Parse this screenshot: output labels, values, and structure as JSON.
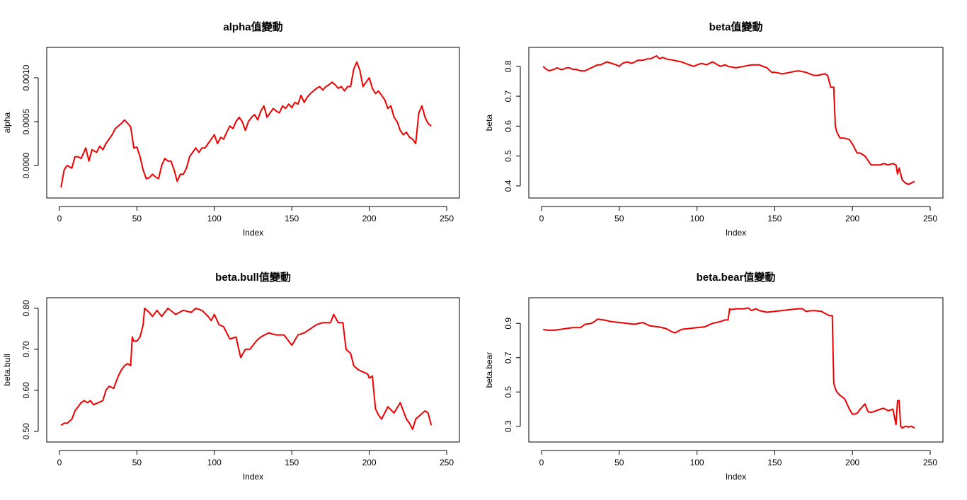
{
  "colors": {
    "line": "#ee0000",
    "axis": "#000000",
    "background": "#ffffff"
  },
  "chart_data": [
    {
      "type": "line",
      "title": "alpha值變動",
      "xlabel": "Index",
      "ylabel": "alpha",
      "xlim": [
        0,
        250
      ],
      "ylim": [
        -0.00025,
        0.00125
      ],
      "xticks": [
        0,
        50,
        100,
        150,
        200,
        250
      ],
      "xtick_labels": [
        "0",
        "50",
        "100",
        "150",
        "200",
        "250"
      ],
      "yticks": [
        0.0,
        0.0005,
        0.001
      ],
      "ytick_labels": [
        "0.0000",
        "0.0005",
        "0.0010"
      ],
      "series": [
        {
          "x": [
            1,
            3,
            5,
            8,
            10,
            12,
            14,
            17,
            19,
            21,
            24,
            26,
            28,
            30,
            32,
            34,
            36,
            38,
            40,
            42,
            44,
            46,
            48,
            50,
            52,
            54,
            56,
            58,
            60,
            62,
            64,
            66,
            68,
            70,
            72,
            74,
            76,
            78,
            80,
            82,
            84,
            86,
            88,
            90,
            92,
            94,
            96,
            98,
            100,
            102,
            104,
            106,
            108,
            110,
            112,
            114,
            116,
            118,
            120,
            122,
            124,
            126,
            128,
            130,
            132,
            134,
            136,
            138,
            140,
            142,
            144,
            146,
            148,
            150,
            152,
            154,
            156,
            158,
            160,
            162,
            164,
            166,
            168,
            170,
            172,
            174,
            176,
            178,
            180,
            182,
            184,
            186,
            188,
            190,
            192,
            194,
            196,
            198,
            200,
            202,
            204,
            206,
            208,
            210,
            212,
            214,
            216,
            218,
            220,
            222,
            224,
            226,
            228,
            230,
            232,
            234,
            236,
            238,
            240
          ],
          "values": [
            -0.00025,
            -5e-05,
            0.0,
            -3e-05,
            0.0001,
            0.0001,
            8e-05,
            0.0002,
            5e-05,
            0.00018,
            0.00015,
            0.00022,
            0.00018,
            0.00025,
            0.0003,
            0.00035,
            0.00042,
            0.00045,
            0.00048,
            0.00052,
            0.00048,
            0.00044,
            0.0002,
            0.00021,
            0.0001,
            -5e-05,
            -0.00015,
            -0.00014,
            -0.0001,
            -0.00013,
            -0.00015,
            0.0,
            8e-05,
            5e-05,
            5e-05,
            -5e-05,
            -0.00018,
            -0.0001,
            -0.0001,
            -3e-05,
            0.0001,
            0.00015,
            0.0002,
            0.00015,
            0.0002,
            0.0002,
            0.00025,
            0.0003,
            0.00035,
            0.00025,
            0.00032,
            0.0003,
            0.00038,
            0.00045,
            0.00042,
            0.0005,
            0.00055,
            0.0005,
            0.0004,
            0.0005,
            0.00055,
            0.00058,
            0.00052,
            0.00062,
            0.00068,
            0.00055,
            0.0006,
            0.00065,
            0.00062,
            0.0006,
            0.00068,
            0.00065,
            0.0007,
            0.00066,
            0.00072,
            0.0007,
            0.0008,
            0.00072,
            0.00078,
            0.00082,
            0.00085,
            0.00088,
            0.0009,
            0.00086,
            0.0009,
            0.00092,
            0.00095,
            0.00092,
            0.00088,
            0.0009,
            0.00085,
            0.0009,
            0.0009,
            0.0011,
            0.00118,
            0.00108,
            0.0009,
            0.00095,
            0.001,
            0.00088,
            0.00082,
            0.00085,
            0.0008,
            0.00075,
            0.00065,
            0.00068,
            0.00055,
            0.0005,
            0.0004,
            0.00035,
            0.00038,
            0.00032,
            0.0003,
            0.00025,
            0.0006,
            0.00068,
            0.00055,
            0.00048,
            0.00045
          ]
        }
      ]
    },
    {
      "type": "line",
      "title": "beta值變動",
      "xlabel": "Index",
      "ylabel": "beta",
      "xlim": [
        0,
        250
      ],
      "ylim": [
        0.395,
        0.835
      ],
      "xticks": [
        0,
        50,
        100,
        150,
        200,
        250
      ],
      "xtick_labels": [
        "0",
        "50",
        "100",
        "150",
        "200",
        "250"
      ],
      "yticks": [
        0.4,
        0.5,
        0.6,
        0.7,
        0.8
      ],
      "ytick_labels": [
        "0.4",
        "0.5",
        "0.6",
        "0.7",
        "0.8"
      ],
      "series": [
        {
          "x": [
            1,
            3,
            5,
            8,
            10,
            12,
            14,
            16,
            18,
            20,
            22,
            25,
            28,
            30,
            32,
            34,
            36,
            38,
            40,
            42,
            45,
            48,
            50,
            52,
            55,
            58,
            60,
            62,
            65,
            68,
            70,
            72,
            74,
            76,
            78,
            80,
            85,
            90,
            95,
            98,
            100,
            103,
            106,
            110,
            115,
            118,
            120,
            125,
            130,
            135,
            140,
            145,
            148,
            150,
            155,
            160,
            165,
            170,
            175,
            178,
            182,
            184,
            186,
            188,
            189,
            190,
            192,
            195,
            198,
            200,
            203,
            205,
            208,
            212,
            215,
            218,
            220,
            223,
            226,
            228,
            229,
            230,
            232,
            234,
            236,
            238,
            240
          ],
          "values": [
            0.8,
            0.79,
            0.785,
            0.79,
            0.795,
            0.79,
            0.79,
            0.795,
            0.795,
            0.79,
            0.79,
            0.785,
            0.785,
            0.79,
            0.795,
            0.8,
            0.805,
            0.805,
            0.81,
            0.815,
            0.81,
            0.805,
            0.8,
            0.81,
            0.815,
            0.81,
            0.815,
            0.82,
            0.82,
            0.825,
            0.825,
            0.83,
            0.835,
            0.825,
            0.83,
            0.825,
            0.82,
            0.815,
            0.805,
            0.8,
            0.805,
            0.81,
            0.805,
            0.815,
            0.8,
            0.805,
            0.8,
            0.795,
            0.8,
            0.805,
            0.805,
            0.795,
            0.78,
            0.78,
            0.775,
            0.78,
            0.785,
            0.78,
            0.77,
            0.77,
            0.775,
            0.77,
            0.73,
            0.73,
            0.6,
            0.58,
            0.56,
            0.56,
            0.555,
            0.54,
            0.51,
            0.51,
            0.5,
            0.47,
            0.47,
            0.47,
            0.475,
            0.47,
            0.475,
            0.47,
            0.44,
            0.46,
            0.42,
            0.41,
            0.405,
            0.41,
            0.415
          ]
        }
      ]
    },
    {
      "type": "line",
      "title": "beta.bull值變動",
      "xlabel": "Index",
      "ylabel": "beta.bull",
      "xlim": [
        0,
        250
      ],
      "ylim": [
        0.5,
        0.805
      ],
      "xticks": [
        0,
        50,
        100,
        150,
        200,
        250
      ],
      "xtick_labels": [
        "0",
        "50",
        "100",
        "150",
        "200",
        "250"
      ],
      "yticks": [
        0.5,
        0.6,
        0.7,
        0.8
      ],
      "ytick_labels": [
        "0.50",
        "0.60",
        "0.70",
        "0.80"
      ],
      "series": [
        {
          "x": [
            1,
            3,
            5,
            8,
            10,
            12,
            14,
            16,
            18,
            20,
            22,
            25,
            28,
            30,
            32,
            35,
            38,
            40,
            42,
            44,
            46,
            47,
            48,
            50,
            52,
            54,
            55,
            58,
            60,
            63,
            66,
            70,
            75,
            80,
            85,
            88,
            92,
            96,
            98,
            100,
            103,
            106,
            110,
            114,
            117,
            120,
            123,
            127,
            130,
            135,
            140,
            145,
            148,
            150,
            154,
            158,
            162,
            166,
            170,
            175,
            177,
            180,
            183,
            185,
            188,
            190,
            193,
            196,
            199,
            200,
            202,
            204,
            206,
            208,
            212,
            216,
            220,
            224,
            226,
            228,
            230,
            233,
            236,
            238,
            240
          ],
          "values": [
            0.515,
            0.52,
            0.52,
            0.53,
            0.55,
            0.56,
            0.57,
            0.575,
            0.57,
            0.575,
            0.565,
            0.57,
            0.575,
            0.6,
            0.61,
            0.605,
            0.635,
            0.65,
            0.66,
            0.665,
            0.66,
            0.73,
            0.72,
            0.72,
            0.73,
            0.76,
            0.8,
            0.79,
            0.78,
            0.795,
            0.78,
            0.8,
            0.785,
            0.795,
            0.79,
            0.8,
            0.795,
            0.78,
            0.77,
            0.785,
            0.76,
            0.755,
            0.725,
            0.73,
            0.68,
            0.7,
            0.7,
            0.72,
            0.73,
            0.74,
            0.735,
            0.735,
            0.72,
            0.71,
            0.735,
            0.74,
            0.75,
            0.76,
            0.765,
            0.765,
            0.785,
            0.765,
            0.765,
            0.7,
            0.69,
            0.66,
            0.65,
            0.645,
            0.64,
            0.63,
            0.635,
            0.555,
            0.54,
            0.53,
            0.56,
            0.545,
            0.57,
            0.53,
            0.52,
            0.505,
            0.53,
            0.54,
            0.55,
            0.545,
            0.515
          ]
        }
      ]
    },
    {
      "type": "line",
      "title": "beta.bear值變動",
      "xlabel": "Index",
      "ylabel": "beta.bear",
      "xlim": [
        0,
        250
      ],
      "ylim": [
        0.27,
        1.0
      ],
      "xticks": [
        0,
        50,
        100,
        150,
        200,
        250
      ],
      "xtick_labels": [
        "0",
        "50",
        "100",
        "150",
        "200",
        "250"
      ],
      "yticks": [
        0.3,
        0.5,
        0.7,
        0.9
      ],
      "ytick_labels": [
        "0.3",
        "0.5",
        "0.7",
        "0.9"
      ],
      "series": [
        {
          "x": [
            1,
            4,
            8,
            12,
            16,
            20,
            25,
            28,
            32,
            34,
            36,
            40,
            45,
            50,
            55,
            60,
            65,
            70,
            75,
            80,
            84,
            86,
            88,
            90,
            95,
            100,
            105,
            110,
            115,
            118,
            120,
            121,
            122,
            125,
            130,
            133,
            135,
            138,
            140,
            145,
            150,
            155,
            160,
            165,
            168,
            170,
            175,
            180,
            183,
            185,
            187,
            188,
            189,
            190,
            192,
            195,
            198,
            200,
            203,
            205,
            208,
            210,
            212,
            215,
            218,
            220,
            223,
            226,
            228,
            229,
            230,
            231,
            232,
            234,
            236,
            238,
            240
          ],
          "values": [
            0.865,
            0.86,
            0.86,
            0.865,
            0.87,
            0.875,
            0.875,
            0.895,
            0.9,
            0.91,
            0.925,
            0.92,
            0.91,
            0.905,
            0.9,
            0.895,
            0.905,
            0.885,
            0.88,
            0.87,
            0.85,
            0.845,
            0.855,
            0.865,
            0.87,
            0.875,
            0.88,
            0.9,
            0.91,
            0.92,
            0.92,
            0.985,
            0.98,
            0.985,
            0.985,
            0.99,
            0.975,
            0.985,
            0.975,
            0.965,
            0.97,
            0.975,
            0.98,
            0.985,
            0.985,
            0.97,
            0.975,
            0.97,
            0.955,
            0.945,
            0.945,
            0.55,
            0.52,
            0.5,
            0.48,
            0.46,
            0.4,
            0.37,
            0.375,
            0.4,
            0.43,
            0.385,
            0.38,
            0.39,
            0.4,
            0.405,
            0.39,
            0.4,
            0.31,
            0.45,
            0.45,
            0.3,
            0.29,
            0.3,
            0.295,
            0.3,
            0.29
          ]
        }
      ]
    }
  ]
}
